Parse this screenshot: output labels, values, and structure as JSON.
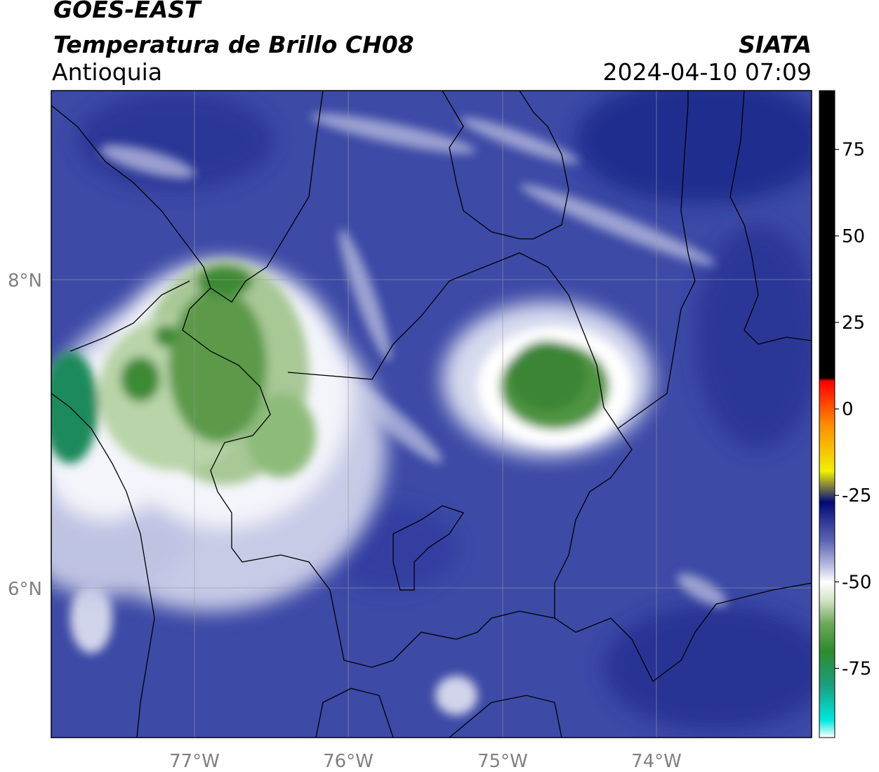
{
  "header": {
    "satellite": "GOES-EAST",
    "product": "Temperatura de Brillo CH08",
    "region": "Antioquia",
    "organization": "SIATA",
    "datetime": "2024-04-10 07:09"
  },
  "map": {
    "lon_range": [
      -77.95,
      -73.0
    ],
    "lat_range": [
      5.05,
      9.25
    ],
    "lon_ticks": [
      "77°W",
      "76°W",
      "75°W",
      "74°W"
    ],
    "lon_tick_values": [
      -77,
      -76,
      -75,
      -74
    ],
    "lat_ticks": [
      "8°N",
      "6°N"
    ],
    "lat_tick_values": [
      8,
      6
    ],
    "gridlines": true,
    "borders": "department boundaries (black)"
  },
  "colorbar": {
    "orientation": "vertical",
    "placement": "right",
    "range": [
      -95,
      92
    ],
    "ticks": [
      "75",
      "50",
      "25",
      "0",
      "-25",
      "-50",
      "-75"
    ],
    "tick_values": [
      75,
      50,
      25,
      0,
      -25,
      -50,
      -75
    ],
    "stops": [
      {
        "value": -95,
        "color": "#ffffff"
      },
      {
        "value": -90,
        "color": "#00e8e0"
      },
      {
        "value": -80,
        "color": "#1aa080"
      },
      {
        "value": -70,
        "color": "#2e8b2e"
      },
      {
        "value": -62,
        "color": "#6ea85a"
      },
      {
        "value": -55,
        "color": "#d8e6c8"
      },
      {
        "value": -50,
        "color": "#ffffff"
      },
      {
        "value": -45,
        "color": "#b4b8dc"
      },
      {
        "value": -38,
        "color": "#5a62b4"
      },
      {
        "value": -32,
        "color": "#2c3494"
      },
      {
        "value": -27,
        "color": "#000a78"
      },
      {
        "value": -24,
        "color": "#555555"
      },
      {
        "value": -18,
        "color": "#f0f000"
      },
      {
        "value": -5,
        "color": "#ff9000"
      },
      {
        "value": 8,
        "color": "#ff0000"
      },
      {
        "value": 9,
        "color": "#000000"
      },
      {
        "value": 92,
        "color": "#000000"
      }
    ]
  }
}
